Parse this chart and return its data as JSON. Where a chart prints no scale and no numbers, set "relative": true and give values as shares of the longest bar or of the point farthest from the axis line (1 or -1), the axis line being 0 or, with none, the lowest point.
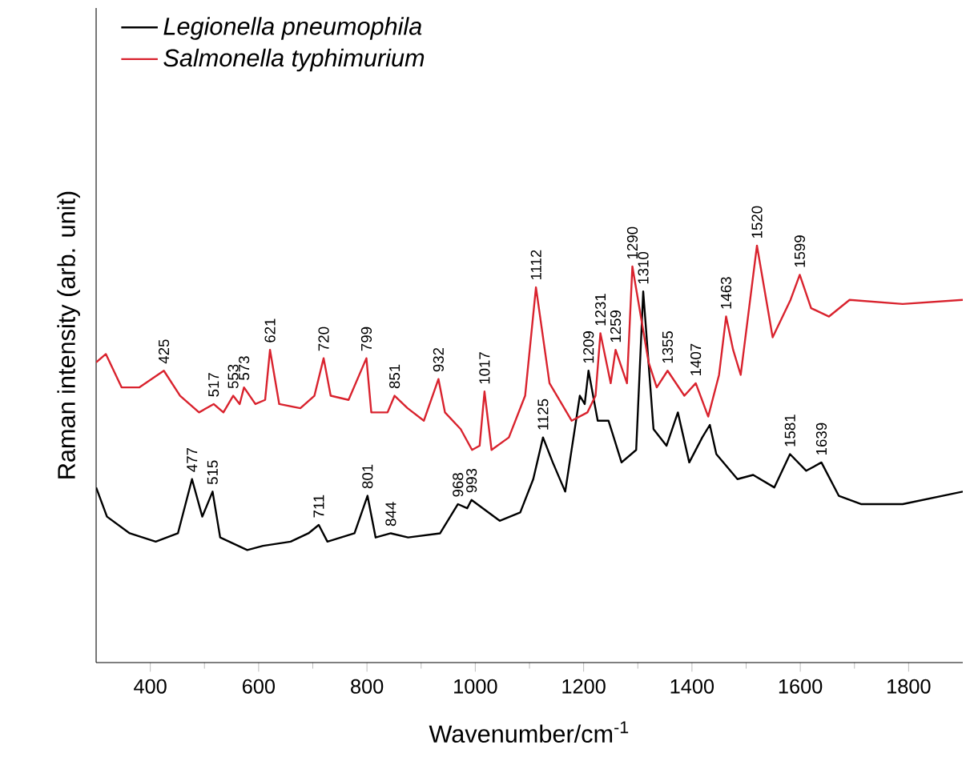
{
  "chart_data": {
    "type": "line",
    "relative": true,
    "xlabel": "Wavenumber/cm$^{-1}$",
    "ylabel": "Raman intensity (arb. unit)",
    "xlim": [
      300,
      1900
    ],
    "xticks": [
      400,
      600,
      800,
      1000,
      1200,
      1400,
      1600,
      1800
    ],
    "legend": "top left",
    "marker": "none",
    "series": [
      {
        "name": "Legionella pneumophila",
        "color": "#000000",
        "x": [
          300,
          320,
          362,
          410,
          451,
          477,
          496,
          515,
          529,
          579,
          608,
          659,
          692,
          711,
          727,
          777,
          801,
          816,
          844,
          876,
          935,
          968,
          985,
          993,
          1045,
          1083,
          1107,
          1125,
          1143,
          1166,
          1193,
          1202,
          1209,
          1226,
          1246,
          1270,
          1297,
          1310,
          1329,
          1353,
          1374,
          1395,
          1419,
          1433,
          1445,
          1484,
          1513,
          1552,
          1581,
          1611,
          1639,
          1671,
          1712,
          1789,
          1900
        ],
        "values": [
          0.42,
          0.35,
          0.31,
          0.29,
          0.31,
          0.44,
          0.35,
          0.41,
          0.3,
          0.27,
          0.28,
          0.29,
          0.31,
          0.33,
          0.29,
          0.31,
          0.4,
          0.3,
          0.31,
          0.3,
          0.31,
          0.38,
          0.37,
          0.39,
          0.34,
          0.36,
          0.44,
          0.54,
          0.48,
          0.41,
          0.64,
          0.62,
          0.7,
          0.58,
          0.58,
          0.48,
          0.51,
          0.89,
          0.56,
          0.52,
          0.6,
          0.48,
          0.54,
          0.57,
          0.5,
          0.44,
          0.45,
          0.42,
          0.5,
          0.46,
          0.48,
          0.4,
          0.38,
          0.38,
          0.41
        ]
      },
      {
        "name": "Salmonella typhimurium",
        "color": "#d9232e",
        "x": [
          300,
          318,
          347,
          380,
          425,
          455,
          490,
          517,
          535,
          553,
          565,
          573,
          594,
          612,
          621,
          638,
          677,
          703,
          720,
          733,
          766,
          799,
          808,
          838,
          851,
          875,
          905,
          932,
          944,
          973,
          994,
          1008,
          1017,
          1030,
          1062,
          1092,
          1112,
          1137,
          1178,
          1207,
          1222,
          1231,
          1250,
          1259,
          1280,
          1290,
          1320,
          1335,
          1355,
          1386,
          1407,
          1430,
          1450,
          1463,
          1476,
          1490,
          1520,
          1549,
          1582,
          1599,
          1620,
          1653,
          1691,
          1789,
          1900
        ],
        "values": [
          0.72,
          0.74,
          0.66,
          0.66,
          0.7,
          0.64,
          0.6,
          0.62,
          0.6,
          0.64,
          0.62,
          0.66,
          0.62,
          0.63,
          0.75,
          0.62,
          0.61,
          0.64,
          0.73,
          0.64,
          0.63,
          0.73,
          0.6,
          0.6,
          0.64,
          0.61,
          0.58,
          0.68,
          0.6,
          0.56,
          0.51,
          0.52,
          0.65,
          0.51,
          0.54,
          0.64,
          0.9,
          0.67,
          0.58,
          0.6,
          0.64,
          0.79,
          0.67,
          0.75,
          0.67,
          0.95,
          0.72,
          0.66,
          0.7,
          0.64,
          0.67,
          0.59,
          0.69,
          0.83,
          0.75,
          0.69,
          1,
          0.78,
          0.87,
          0.93,
          0.85,
          0.83,
          0.87,
          0.86,
          0.87
        ]
      }
    ],
    "annotations": [
      {
        "text": "425",
        "x": 425,
        "y": 0.7
      },
      {
        "text": "517",
        "x": 517,
        "y": 0.62
      },
      {
        "text": "553",
        "x": 553,
        "y": 0.64
      },
      {
        "text": "573",
        "x": 573,
        "y": 0.66
      },
      {
        "text": "621",
        "x": 621,
        "y": 0.75
      },
      {
        "text": "720",
        "x": 720,
        "y": 0.73
      },
      {
        "text": "799",
        "x": 799,
        "y": 0.73
      },
      {
        "text": "851",
        "x": 851,
        "y": 0.64
      },
      {
        "text": "932",
        "x": 932,
        "y": 0.68
      },
      {
        "text": "1017",
        "x": 1017,
        "y": 0.65
      },
      {
        "text": "1112",
        "x": 1112,
        "y": 0.9
      },
      {
        "text": "1231",
        "x": 1231,
        "y": 0.79
      },
      {
        "text": "1259",
        "x": 1259,
        "y": 0.75
      },
      {
        "text": "1290",
        "x": 1290,
        "y": 0.95
      },
      {
        "text": "1355",
        "x": 1355,
        "y": 0.7
      },
      {
        "text": "1407",
        "x": 1407,
        "y": 0.67
      },
      {
        "text": "1463",
        "x": 1463,
        "y": 0.83
      },
      {
        "text": "1520",
        "x": 1520,
        "y": 1
      },
      {
        "text": "1599",
        "x": 1599,
        "y": 0.93
      },
      {
        "text": "477",
        "x": 477,
        "y": 0.44
      },
      {
        "text": "515",
        "x": 515,
        "y": 0.41
      },
      {
        "text": "711",
        "x": 711,
        "y": 0.33
      },
      {
        "text": "801",
        "x": 801,
        "y": 0.4
      },
      {
        "text": "844",
        "x": 844,
        "y": 0.31
      },
      {
        "text": "968",
        "x": 968,
        "y": 0.38
      },
      {
        "text": "993",
        "x": 993,
        "y": 0.39
      },
      {
        "text": "1125",
        "x": 1125,
        "y": 0.54
      },
      {
        "text": "1209",
        "x": 1209,
        "y": 0.7
      },
      {
        "text": "1310",
        "x": 1310,
        "y": 0.89
      },
      {
        "text": "1581",
        "x": 1581,
        "y": 0.5
      },
      {
        "text": "1639",
        "x": 1639,
        "y": 0.48
      }
    ]
  }
}
